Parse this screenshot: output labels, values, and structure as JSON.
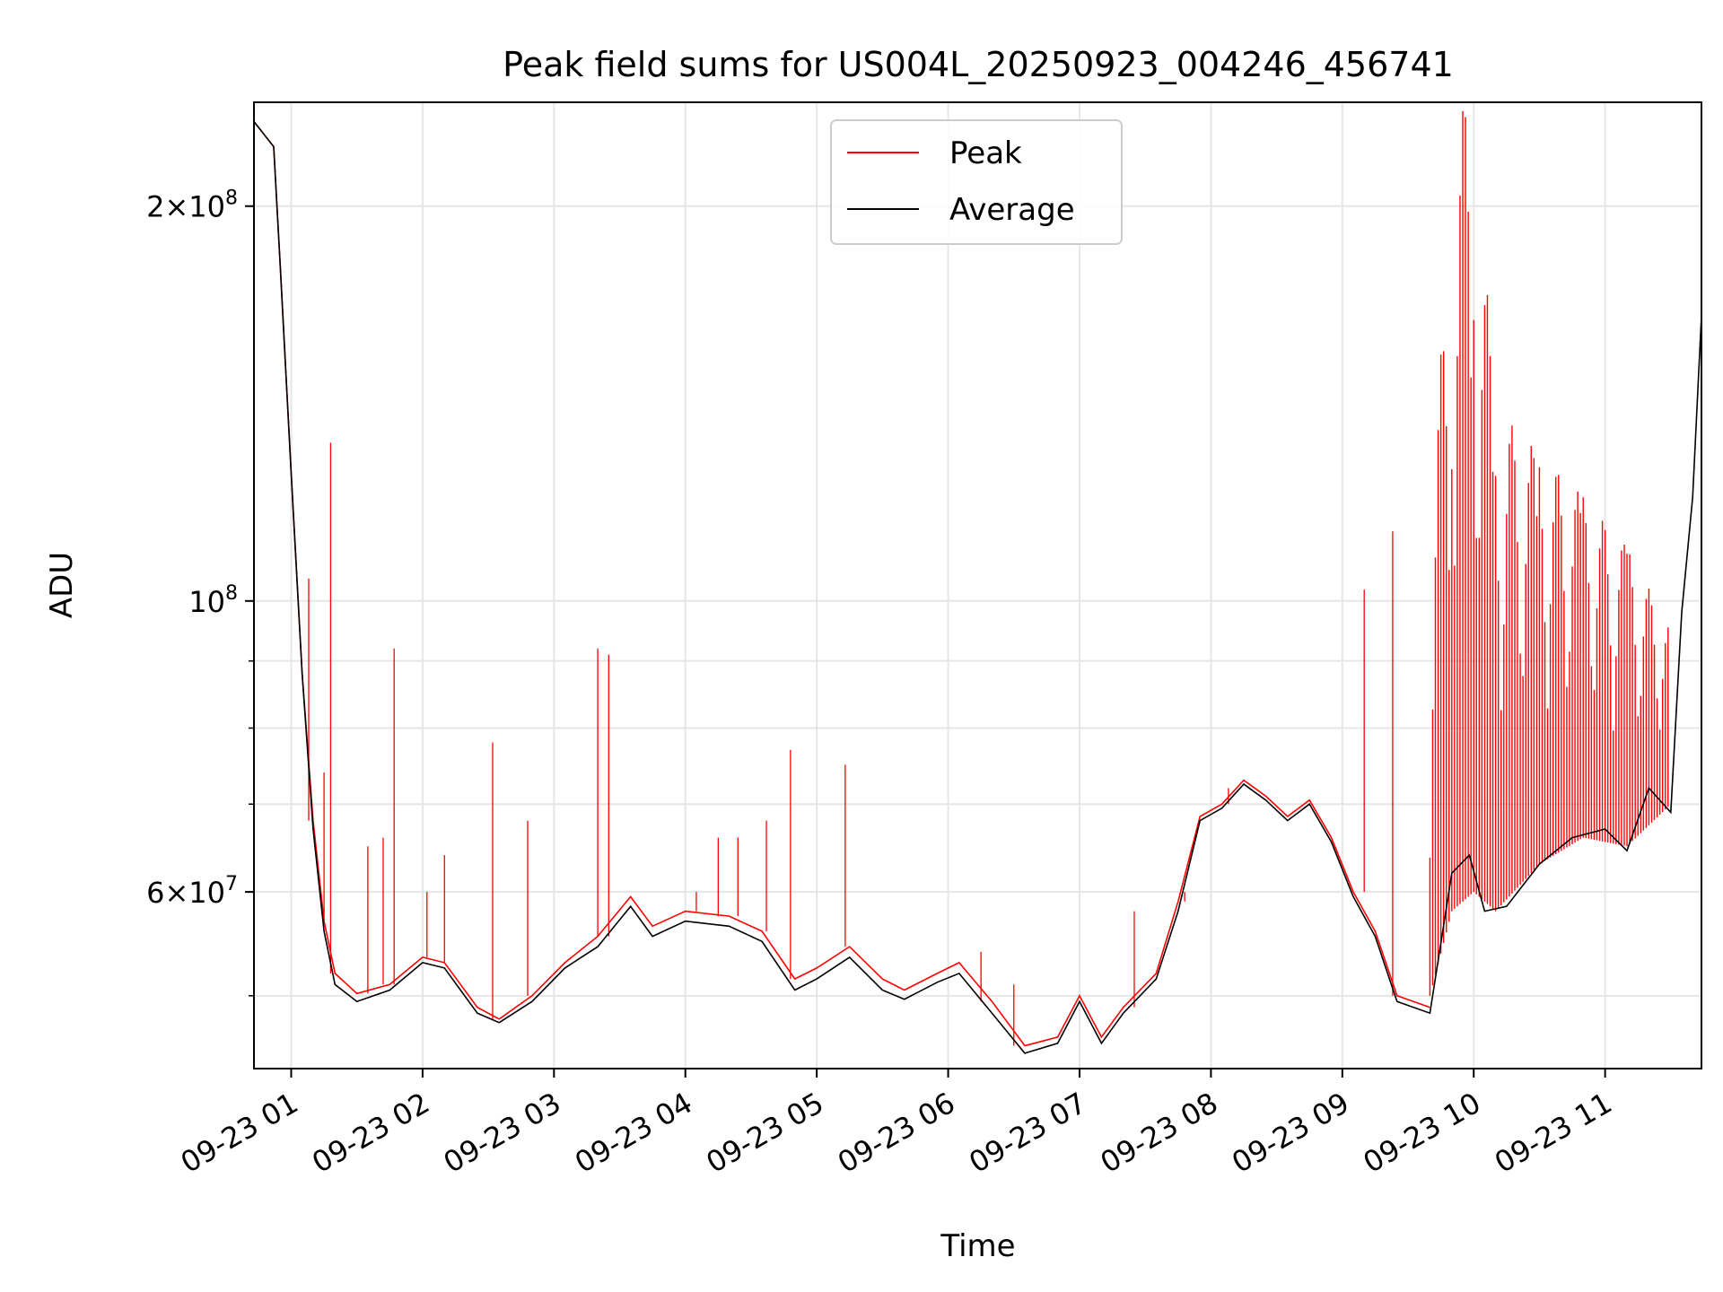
{
  "chart_data": {
    "type": "line",
    "title": "Peak field sums for US004L_20250923_004246_456741",
    "xlabel": "Time",
    "ylabel": "ADU",
    "yscale": "log",
    "ylim": [
      44000000,
      240000000
    ],
    "xlim": [
      "2025-09-23 00:43",
      "2025-09-23 11:44"
    ],
    "grid": true,
    "legend_position": "upper-center",
    "x_ticks": [
      {
        "t": "2025-09-23 01:00",
        "label": "09-23 01"
      },
      {
        "t": "2025-09-23 02:00",
        "label": "09-23 02"
      },
      {
        "t": "2025-09-23 03:00",
        "label": "09-23 03"
      },
      {
        "t": "2025-09-23 04:00",
        "label": "09-23 04"
      },
      {
        "t": "2025-09-23 05:00",
        "label": "09-23 05"
      },
      {
        "t": "2025-09-23 06:00",
        "label": "09-23 06"
      },
      {
        "t": "2025-09-23 07:00",
        "label": "09-23 07"
      },
      {
        "t": "2025-09-23 08:00",
        "label": "09-23 08"
      },
      {
        "t": "2025-09-23 09:00",
        "label": "09-23 09"
      },
      {
        "t": "2025-09-23 10:00",
        "label": "09-23 10"
      },
      {
        "t": "2025-09-23 11:00",
        "label": "09-23 11"
      }
    ],
    "y_major_ticks": [
      {
        "value": 60000000,
        "mant": "6",
        "exp": "7"
      },
      {
        "value": 100000000,
        "mant": "",
        "exp": "8"
      },
      {
        "value": 200000000,
        "mant": "2",
        "exp": "8"
      }
    ],
    "y_minor_ticks": [
      50000000,
      70000000,
      80000000,
      90000000
    ],
    "series": [
      {
        "name": "Peak",
        "color": "#ff0000",
        "points": [
          [
            "2025-09-23 00:43",
            232000000
          ],
          [
            "2025-09-23 00:52",
            222000000
          ],
          [
            "2025-09-23 00:55",
            180000000
          ],
          [
            "2025-09-23 01:00",
            125000000
          ],
          [
            "2025-09-23 01:05",
            88000000
          ],
          [
            "2025-09-23 01:10",
            68000000
          ],
          [
            "2025-09-23 01:15",
            57000000
          ],
          [
            "2025-09-23 01:20",
            52000000
          ],
          [
            "2025-09-23 01:30",
            50200000
          ],
          [
            "2025-09-23 01:45",
            51000000
          ],
          [
            "2025-09-23 02:00",
            53500000
          ],
          [
            "2025-09-23 02:10",
            53000000
          ],
          [
            "2025-09-23 02:25",
            49000000
          ],
          [
            "2025-09-23 02:35",
            48000000
          ],
          [
            "2025-09-23 02:50",
            50000000
          ],
          [
            "2025-09-23 03:05",
            53000000
          ],
          [
            "2025-09-23 03:20",
            55500000
          ],
          [
            "2025-09-23 03:35",
            59500000
          ],
          [
            "2025-09-23 03:45",
            56500000
          ],
          [
            "2025-09-23 04:00",
            58000000
          ],
          [
            "2025-09-23 04:20",
            57500000
          ],
          [
            "2025-09-23 04:35",
            56000000
          ],
          [
            "2025-09-23 04:50",
            51500000
          ],
          [
            "2025-09-23 05:00",
            52500000
          ],
          [
            "2025-09-23 05:15",
            54500000
          ],
          [
            "2025-09-23 05:30",
            51500000
          ],
          [
            "2025-09-23 05:40",
            50500000
          ],
          [
            "2025-09-23 05:55",
            52000000
          ],
          [
            "2025-09-23 06:05",
            53000000
          ],
          [
            "2025-09-23 06:20",
            49500000
          ],
          [
            "2025-09-23 06:35",
            45800000
          ],
          [
            "2025-09-23 06:50",
            46500000
          ],
          [
            "2025-09-23 07:00",
            50000000
          ],
          [
            "2025-09-23 07:10",
            46500000
          ],
          [
            "2025-09-23 07:20",
            49000000
          ],
          [
            "2025-09-23 07:35",
            52000000
          ],
          [
            "2025-09-23 07:45",
            59000000
          ],
          [
            "2025-09-23 07:55",
            68500000
          ],
          [
            "2025-09-23 08:05",
            70000000
          ],
          [
            "2025-09-23 08:15",
            73000000
          ],
          [
            "2025-09-23 08:25",
            71000000
          ],
          [
            "2025-09-23 08:35",
            68500000
          ],
          [
            "2025-09-23 08:45",
            70500000
          ],
          [
            "2025-09-23 08:55",
            66000000
          ],
          [
            "2025-09-23 09:05",
            60000000
          ],
          [
            "2025-09-23 09:15",
            56000000
          ],
          [
            "2025-09-23 09:25",
            50000000
          ],
          [
            "2025-09-23 09:40",
            49000000
          ]
        ]
      },
      {
        "name": "Average",
        "color": "#000000",
        "points": [
          [
            "2025-09-23 00:43",
            232000000
          ],
          [
            "2025-09-23 00:52",
            222000000
          ],
          [
            "2025-09-23 00:55",
            180000000
          ],
          [
            "2025-09-23 01:00",
            125000000
          ],
          [
            "2025-09-23 01:05",
            88000000
          ],
          [
            "2025-09-23 01:10",
            67000000
          ],
          [
            "2025-09-23 01:15",
            56000000
          ],
          [
            "2025-09-23 01:20",
            51000000
          ],
          [
            "2025-09-23 01:30",
            49500000
          ],
          [
            "2025-09-23 01:45",
            50500000
          ],
          [
            "2025-09-23 02:00",
            53000000
          ],
          [
            "2025-09-23 02:10",
            52500000
          ],
          [
            "2025-09-23 02:25",
            48500000
          ],
          [
            "2025-09-23 02:35",
            47700000
          ],
          [
            "2025-09-23 02:50",
            49500000
          ],
          [
            "2025-09-23 03:05",
            52500000
          ],
          [
            "2025-09-23 03:20",
            54500000
          ],
          [
            "2025-09-23 03:35",
            58500000
          ],
          [
            "2025-09-23 03:45",
            55500000
          ],
          [
            "2025-09-23 04:00",
            57000000
          ],
          [
            "2025-09-23 04:20",
            56500000
          ],
          [
            "2025-09-23 04:35",
            55000000
          ],
          [
            "2025-09-23 04:50",
            50500000
          ],
          [
            "2025-09-23 05:00",
            51500000
          ],
          [
            "2025-09-23 05:15",
            53500000
          ],
          [
            "2025-09-23 05:30",
            50500000
          ],
          [
            "2025-09-23 05:40",
            49700000
          ],
          [
            "2025-09-23 05:55",
            51200000
          ],
          [
            "2025-09-23 06:05",
            52000000
          ],
          [
            "2025-09-23 06:20",
            48500000
          ],
          [
            "2025-09-23 06:35",
            45200000
          ],
          [
            "2025-09-23 06:50",
            46000000
          ],
          [
            "2025-09-23 07:00",
            49500000
          ],
          [
            "2025-09-23 07:10",
            46000000
          ],
          [
            "2025-09-23 07:20",
            48500000
          ],
          [
            "2025-09-23 07:35",
            51500000
          ],
          [
            "2025-09-23 07:45",
            58000000
          ],
          [
            "2025-09-23 07:55",
            68000000
          ],
          [
            "2025-09-23 08:05",
            69500000
          ],
          [
            "2025-09-23 08:15",
            72500000
          ],
          [
            "2025-09-23 08:25",
            70500000
          ],
          [
            "2025-09-23 08:35",
            68000000
          ],
          [
            "2025-09-23 08:45",
            70000000
          ],
          [
            "2025-09-23 08:55",
            65500000
          ],
          [
            "2025-09-23 09:05",
            59500000
          ],
          [
            "2025-09-23 09:15",
            55500000
          ],
          [
            "2025-09-23 09:25",
            49500000
          ],
          [
            "2025-09-23 09:40",
            48500000
          ],
          [
            "2025-09-23 09:50",
            62000000
          ],
          [
            "2025-09-23 09:58",
            64000000
          ],
          [
            "2025-09-23 10:05",
            58000000
          ],
          [
            "2025-09-23 10:15",
            58500000
          ],
          [
            "2025-09-23 10:30",
            63000000
          ],
          [
            "2025-09-23 10:45",
            66000000
          ],
          [
            "2025-09-23 11:00",
            67000000
          ],
          [
            "2025-09-23 11:10",
            64500000
          ],
          [
            "2025-09-23 11:20",
            72000000
          ],
          [
            "2025-09-23 11:30",
            69000000
          ],
          [
            "2025-09-23 11:35",
            98000000
          ],
          [
            "2025-09-23 11:40",
            120000000
          ],
          [
            "2025-09-23 11:44",
            165000000
          ]
        ]
      }
    ],
    "peak_noise_region": {
      "t_start": "2025-09-23 09:40",
      "t_end": "2025-09-23 11:35",
      "approx_band": [
        [
          "2025-09-23 09:40",
          50000000,
          100000000
        ],
        [
          "2025-09-23 09:50",
          58000000,
          240000000
        ],
        [
          "2025-09-23 10:00",
          60000000,
          240000000
        ],
        [
          "2025-09-23 10:10",
          58000000,
          140000000
        ],
        [
          "2025-09-23 10:30",
          63000000,
          130000000
        ],
        [
          "2025-09-23 10:50",
          66000000,
          120000000
        ],
        [
          "2025-09-23 11:10",
          65000000,
          110000000
        ],
        [
          "2025-09-23 11:30",
          70000000,
          95000000
        ]
      ]
    },
    "peak_spikes": [
      [
        "2025-09-23 01:08",
        104000000
      ],
      [
        "2025-09-23 01:15",
        74000000
      ],
      [
        "2025-09-23 01:18",
        132000000
      ],
      [
        "2025-09-23 01:35",
        65000000
      ],
      [
        "2025-09-23 01:42",
        66000000
      ],
      [
        "2025-09-23 01:47",
        92000000
      ],
      [
        "2025-09-23 02:02",
        60000000
      ],
      [
        "2025-09-23 02:10",
        64000000
      ],
      [
        "2025-09-23 02:32",
        78000000
      ],
      [
        "2025-09-23 02:48",
        68000000
      ],
      [
        "2025-09-23 03:20",
        92000000
      ],
      [
        "2025-09-23 03:25",
        91000000
      ],
      [
        "2025-09-23 04:05",
        60000000
      ],
      [
        "2025-09-23 04:15",
        66000000
      ],
      [
        "2025-09-23 04:24",
        66000000
      ],
      [
        "2025-09-23 04:37",
        68000000
      ],
      [
        "2025-09-23 04:48",
        77000000
      ],
      [
        "2025-09-23 05:13",
        75000000
      ],
      [
        "2025-09-23 06:15",
        54000000
      ],
      [
        "2025-09-23 06:30",
        51000000
      ],
      [
        "2025-09-23 07:25",
        58000000
      ],
      [
        "2025-09-23 07:48",
        60000000
      ],
      [
        "2025-09-23 08:08",
        72000000
      ],
      [
        "2025-09-23 09:10",
        102000000
      ],
      [
        "2025-09-23 09:23",
        113000000
      ]
    ]
  }
}
